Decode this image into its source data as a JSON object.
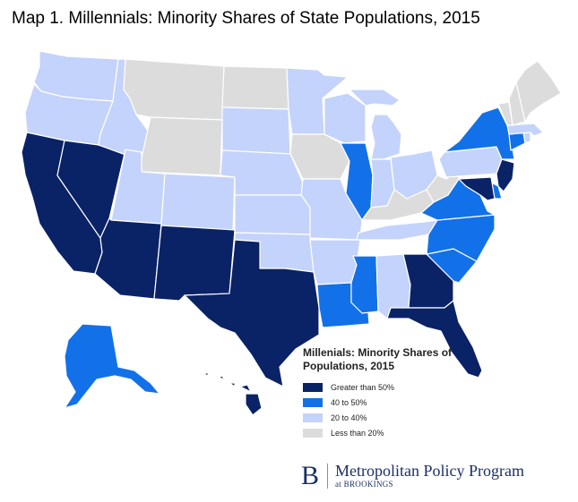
{
  "title": "Map 1. Millennials: Minority Shares of State Populations, 2015",
  "colors": {
    "gt50": "#0a2266",
    "40to50": "#1271e8",
    "20to40": "#c4d3fb",
    "lt20": "#dcdcdc"
  },
  "legend": {
    "title": "Millenials: Minority Shares of Populations, 2015",
    "items": [
      {
        "label": "Greater than 50%",
        "category": "gt50"
      },
      {
        "label": "40 to 50%",
        "category": "40to50"
      },
      {
        "label": "20 to 40%",
        "category": "20to40"
      },
      {
        "label": "Less than 20%",
        "category": "lt20"
      }
    ]
  },
  "states": {
    "WA": "20to40",
    "OR": "20to40",
    "CA": "gt50",
    "NV": "gt50",
    "ID": "20to40",
    "MT": "lt20",
    "WY": "lt20",
    "UT": "20to40",
    "AZ": "gt50",
    "CO": "20to40",
    "NM": "gt50",
    "ND": "lt20",
    "SD": "20to40",
    "NE": "20to40",
    "KS": "20to40",
    "OK": "20to40",
    "TX": "gt50",
    "MN": "20to40",
    "IA": "lt20",
    "MO": "20to40",
    "AR": "20to40",
    "LA": "40to50",
    "WI": "20to40",
    "IL": "40to50",
    "MI": "20to40",
    "IN": "20to40",
    "OH": "20to40",
    "KY": "lt20",
    "TN": "20to40",
    "MS": "40to50",
    "AL": "20to40",
    "GA": "gt50",
    "FL": "gt50",
    "SC": "40to50",
    "NC": "40to50",
    "VA": "40to50",
    "WV": "lt20",
    "PA": "20to40",
    "NY": "40to50",
    "NJ": "gt50",
    "DE": "40to50",
    "MD": "gt50",
    "CT": "40to50",
    "RI": "20to40",
    "MA": "20to40",
    "VT": "lt20",
    "NH": "lt20",
    "ME": "lt20",
    "AK": "40to50",
    "HI": "gt50"
  },
  "branding": {
    "logo_letter": "B",
    "name": "Metropolitan Policy Program",
    "sub": "at BROOKINGS"
  }
}
